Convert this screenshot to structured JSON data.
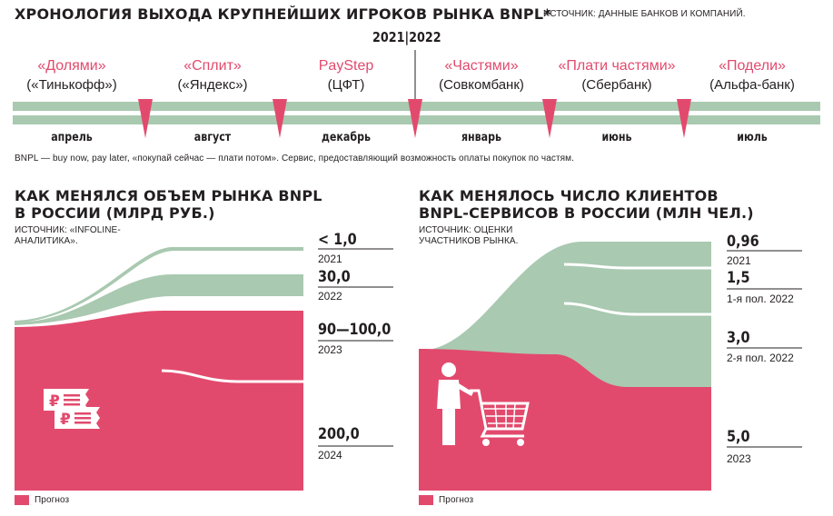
{
  "header": {
    "title": "ХРОНОЛОГИЯ ВЫХОДА КРУПНЕЙШИХ ИГРОКОВ РЫНКА BNPL*",
    "source": "ИСТОЧНИК: ДАННЫЕ БАНКОВ И КОМПАНИЙ."
  },
  "timeline": {
    "year_divider": "2021|2022",
    "items": [
      {
        "product": "«Долями»",
        "bank": "(«Тинькофф»)",
        "month": "апрель"
      },
      {
        "product": "«Сплит»",
        "bank": "(«Яндекс»)",
        "month": "август"
      },
      {
        "product": "PayStep",
        "bank": "(ЦФТ)",
        "month": "декабрь"
      },
      {
        "product": "«Частями»",
        "bank": "(Совкомбанк)",
        "month": "январь"
      },
      {
        "product": "«Плати частями»",
        "bank": "(Сбербанк)",
        "month": "июнь"
      },
      {
        "product": "«Подели»",
        "bank": "(Альфа-банк)",
        "month": "июль"
      }
    ],
    "footnote": "BNPL — buy now, pay later, «покупай сейчас — плати потом». Сервис, предоставляющий возможность оплаты покупок по частям.",
    "colors": {
      "band": "#a9c9b0",
      "marker": "#e24a6d"
    }
  },
  "colors": {
    "forecast": "#e24a6d",
    "actual": "#a9c9b0",
    "axis": "#231f20"
  },
  "chart_data": [
    {
      "type": "area",
      "title": "КАК МЕНЯЛСЯ ОБЪЕМ РЫНКА BNPL В РОССИИ (МЛРД РУБ.)",
      "title_lines": [
        "КАК МЕНЯЛСЯ ОБЪЕМ РЫНКА BNPL",
        "В РОССИИ (МЛРД РУБ.)"
      ],
      "source_lines": [
        "ИСТОЧНИК: «INFOLINE-",
        "АНАЛИТИКА»."
      ],
      "legend": "Прогноз",
      "icon": "ruble-receipt-icon",
      "data": [
        {
          "period": "2021",
          "label": "< 1,0",
          "value": 1.0,
          "forecast": false
        },
        {
          "period": "2022",
          "label": "30,0",
          "value": 30.0,
          "forecast": false
        },
        {
          "period": "2023",
          "label": "90—100,0",
          "value": 95.0,
          "forecast": true
        },
        {
          "period": "2024",
          "label": "200,0",
          "value": 200.0,
          "forecast": true
        }
      ]
    },
    {
      "type": "area",
      "title": "КАК МЕНЯЛОСЬ ЧИСЛО КЛИЕНТОВ BNPL-СЕРВИСОВ В РОССИИ (МЛН ЧЕЛ.)",
      "title_lines": [
        "КАК МЕНЯЛОСЬ ЧИСЛО КЛИЕНТОВ",
        "BNPL-СЕРВИСОВ В РОССИИ (МЛН ЧЕЛ.)"
      ],
      "source_lines": [
        "ИСТОЧНИК: ОЦЕНКИ",
        "УЧАСТНИКОВ РЫНКА."
      ],
      "legend": "Прогноз",
      "icon": "shopper-with-cart-icon",
      "data": [
        {
          "period": "2021",
          "label": "0,96",
          "value": 0.96,
          "forecast": false
        },
        {
          "period": "1-я пол. 2022",
          "label": "1,5",
          "value": 1.5,
          "forecast": false
        },
        {
          "period": "2-я пол. 2022",
          "label": "3,0",
          "value": 3.0,
          "forecast": false
        },
        {
          "period": "2023",
          "label": "5,0",
          "value": 5.0,
          "forecast": true
        }
      ]
    }
  ]
}
